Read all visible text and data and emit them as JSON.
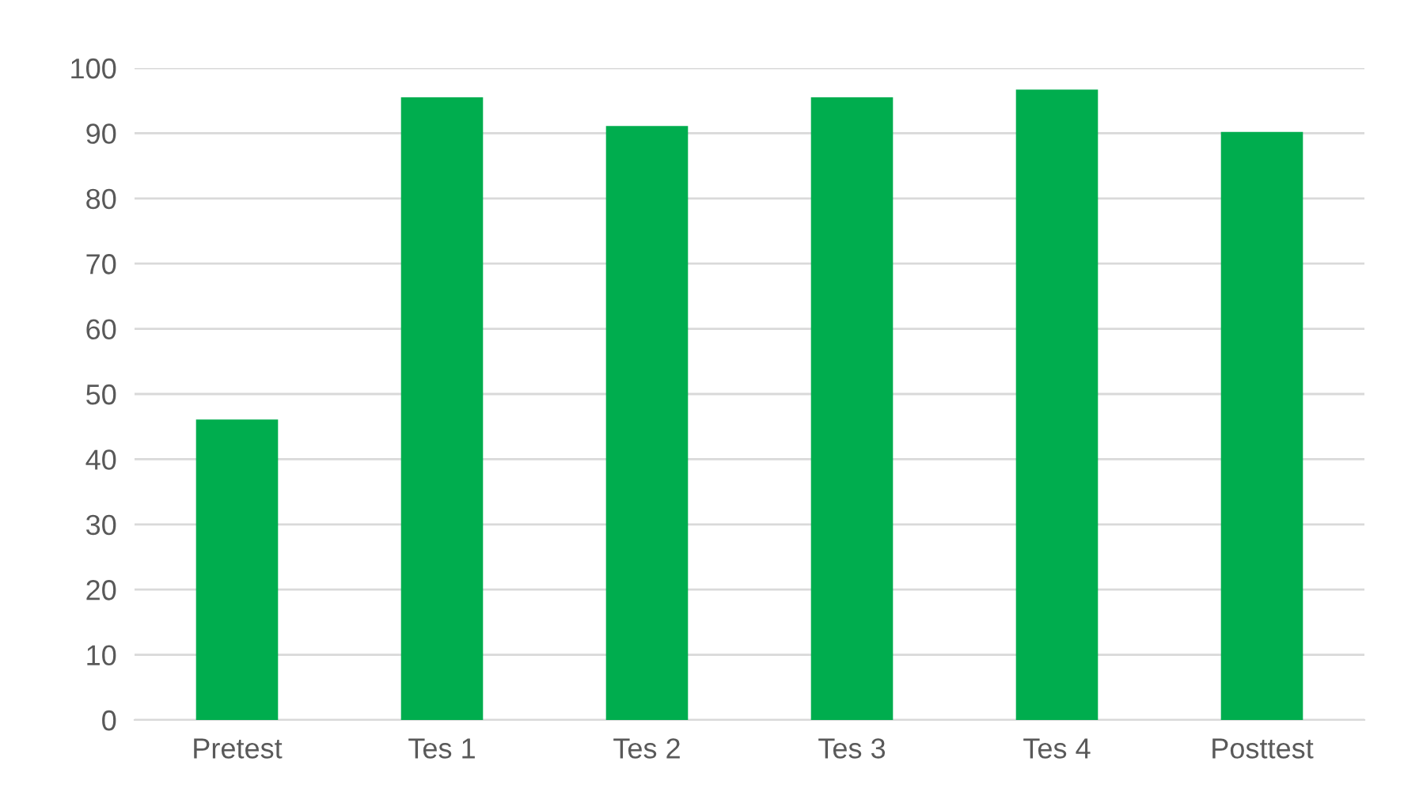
{
  "chart_data": {
    "type": "bar",
    "categories": [
      "Pretest",
      "Tes 1",
      "Tes 2",
      "Tes 3",
      "Tes 4",
      "Posttest"
    ],
    "values": [
      46.1,
      95.5,
      91.1,
      95.5,
      96.7,
      90.2
    ],
    "color": "#00ad4e",
    "ylim": [
      0,
      100
    ],
    "yticks": [
      0,
      10,
      20,
      30,
      40,
      50,
      60,
      70,
      80,
      90,
      100
    ],
    "grid": "y"
  }
}
